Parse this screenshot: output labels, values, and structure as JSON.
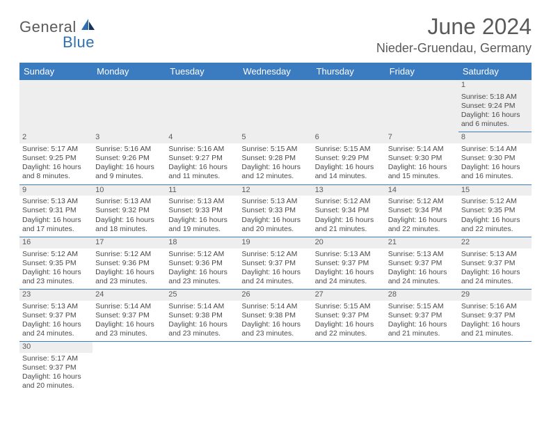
{
  "logo": {
    "word1": "General",
    "word2": "Blue"
  },
  "title": "June 2024",
  "location": "Nieder-Gruendau, Germany",
  "colors": {
    "header_bg": "#3b7bbf",
    "header_fg": "#ffffff",
    "stripe": "#eeeeee",
    "rule": "#3b7bbf",
    "text": "#4a4a4a"
  },
  "day_headers": [
    "Sunday",
    "Monday",
    "Tuesday",
    "Wednesday",
    "Thursday",
    "Friday",
    "Saturday"
  ],
  "weeks": [
    [
      null,
      null,
      null,
      null,
      null,
      null,
      {
        "n": "1",
        "sr": "Sunrise: 5:18 AM",
        "ss": "Sunset: 9:24 PM",
        "d1": "Daylight: 16 hours",
        "d2": "and 6 minutes."
      }
    ],
    [
      {
        "n": "2",
        "sr": "Sunrise: 5:17 AM",
        "ss": "Sunset: 9:25 PM",
        "d1": "Daylight: 16 hours",
        "d2": "and 8 minutes."
      },
      {
        "n": "3",
        "sr": "Sunrise: 5:16 AM",
        "ss": "Sunset: 9:26 PM",
        "d1": "Daylight: 16 hours",
        "d2": "and 9 minutes."
      },
      {
        "n": "4",
        "sr": "Sunrise: 5:16 AM",
        "ss": "Sunset: 9:27 PM",
        "d1": "Daylight: 16 hours",
        "d2": "and 11 minutes."
      },
      {
        "n": "5",
        "sr": "Sunrise: 5:15 AM",
        "ss": "Sunset: 9:28 PM",
        "d1": "Daylight: 16 hours",
        "d2": "and 12 minutes."
      },
      {
        "n": "6",
        "sr": "Sunrise: 5:15 AM",
        "ss": "Sunset: 9:29 PM",
        "d1": "Daylight: 16 hours",
        "d2": "and 14 minutes."
      },
      {
        "n": "7",
        "sr": "Sunrise: 5:14 AM",
        "ss": "Sunset: 9:30 PM",
        "d1": "Daylight: 16 hours",
        "d2": "and 15 minutes."
      },
      {
        "n": "8",
        "sr": "Sunrise: 5:14 AM",
        "ss": "Sunset: 9:30 PM",
        "d1": "Daylight: 16 hours",
        "d2": "and 16 minutes."
      }
    ],
    [
      {
        "n": "9",
        "sr": "Sunrise: 5:13 AM",
        "ss": "Sunset: 9:31 PM",
        "d1": "Daylight: 16 hours",
        "d2": "and 17 minutes."
      },
      {
        "n": "10",
        "sr": "Sunrise: 5:13 AM",
        "ss": "Sunset: 9:32 PM",
        "d1": "Daylight: 16 hours",
        "d2": "and 18 minutes."
      },
      {
        "n": "11",
        "sr": "Sunrise: 5:13 AM",
        "ss": "Sunset: 9:33 PM",
        "d1": "Daylight: 16 hours",
        "d2": "and 19 minutes."
      },
      {
        "n": "12",
        "sr": "Sunrise: 5:13 AM",
        "ss": "Sunset: 9:33 PM",
        "d1": "Daylight: 16 hours",
        "d2": "and 20 minutes."
      },
      {
        "n": "13",
        "sr": "Sunrise: 5:12 AM",
        "ss": "Sunset: 9:34 PM",
        "d1": "Daylight: 16 hours",
        "d2": "and 21 minutes."
      },
      {
        "n": "14",
        "sr": "Sunrise: 5:12 AM",
        "ss": "Sunset: 9:34 PM",
        "d1": "Daylight: 16 hours",
        "d2": "and 22 minutes."
      },
      {
        "n": "15",
        "sr": "Sunrise: 5:12 AM",
        "ss": "Sunset: 9:35 PM",
        "d1": "Daylight: 16 hours",
        "d2": "and 22 minutes."
      }
    ],
    [
      {
        "n": "16",
        "sr": "Sunrise: 5:12 AM",
        "ss": "Sunset: 9:35 PM",
        "d1": "Daylight: 16 hours",
        "d2": "and 23 minutes."
      },
      {
        "n": "17",
        "sr": "Sunrise: 5:12 AM",
        "ss": "Sunset: 9:36 PM",
        "d1": "Daylight: 16 hours",
        "d2": "and 23 minutes."
      },
      {
        "n": "18",
        "sr": "Sunrise: 5:12 AM",
        "ss": "Sunset: 9:36 PM",
        "d1": "Daylight: 16 hours",
        "d2": "and 23 minutes."
      },
      {
        "n": "19",
        "sr": "Sunrise: 5:12 AM",
        "ss": "Sunset: 9:37 PM",
        "d1": "Daylight: 16 hours",
        "d2": "and 24 minutes."
      },
      {
        "n": "20",
        "sr": "Sunrise: 5:13 AM",
        "ss": "Sunset: 9:37 PM",
        "d1": "Daylight: 16 hours",
        "d2": "and 24 minutes."
      },
      {
        "n": "21",
        "sr": "Sunrise: 5:13 AM",
        "ss": "Sunset: 9:37 PM",
        "d1": "Daylight: 16 hours",
        "d2": "and 24 minutes."
      },
      {
        "n": "22",
        "sr": "Sunrise: 5:13 AM",
        "ss": "Sunset: 9:37 PM",
        "d1": "Daylight: 16 hours",
        "d2": "and 24 minutes."
      }
    ],
    [
      {
        "n": "23",
        "sr": "Sunrise: 5:13 AM",
        "ss": "Sunset: 9:37 PM",
        "d1": "Daylight: 16 hours",
        "d2": "and 24 minutes."
      },
      {
        "n": "24",
        "sr": "Sunrise: 5:14 AM",
        "ss": "Sunset: 9:37 PM",
        "d1": "Daylight: 16 hours",
        "d2": "and 23 minutes."
      },
      {
        "n": "25",
        "sr": "Sunrise: 5:14 AM",
        "ss": "Sunset: 9:38 PM",
        "d1": "Daylight: 16 hours",
        "d2": "and 23 minutes."
      },
      {
        "n": "26",
        "sr": "Sunrise: 5:14 AM",
        "ss": "Sunset: 9:38 PM",
        "d1": "Daylight: 16 hours",
        "d2": "and 23 minutes."
      },
      {
        "n": "27",
        "sr": "Sunrise: 5:15 AM",
        "ss": "Sunset: 9:37 PM",
        "d1": "Daylight: 16 hours",
        "d2": "and 22 minutes."
      },
      {
        "n": "28",
        "sr": "Sunrise: 5:15 AM",
        "ss": "Sunset: 9:37 PM",
        "d1": "Daylight: 16 hours",
        "d2": "and 21 minutes."
      },
      {
        "n": "29",
        "sr": "Sunrise: 5:16 AM",
        "ss": "Sunset: 9:37 PM",
        "d1": "Daylight: 16 hours",
        "d2": "and 21 minutes."
      }
    ],
    [
      {
        "n": "30",
        "sr": "Sunrise: 5:17 AM",
        "ss": "Sunset: 9:37 PM",
        "d1": "Daylight: 16 hours",
        "d2": "and 20 minutes."
      },
      null,
      null,
      null,
      null,
      null,
      null
    ]
  ]
}
